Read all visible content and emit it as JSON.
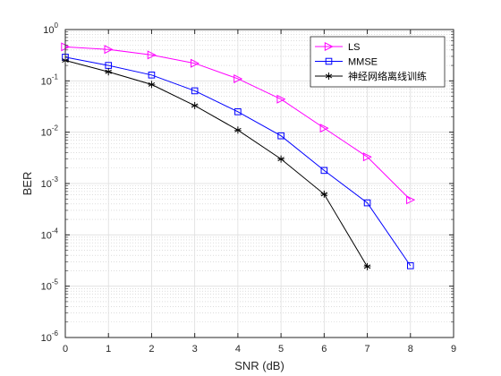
{
  "chart_data": {
    "type": "line",
    "xlabel": "SNR (dB)",
    "ylabel": "BER",
    "xlim": [
      0,
      9
    ],
    "ylim": [
      1e-06,
      1
    ],
    "yscale": "log",
    "grid": true,
    "legend_position": "top-right",
    "x_ticks": [
      "0",
      "1",
      "2",
      "3",
      "4",
      "5",
      "6",
      "7",
      "8",
      "9"
    ],
    "y_ticks": [
      {
        "base": "10",
        "exp": "0"
      },
      {
        "base": "10",
        "exp": "-1"
      },
      {
        "base": "10",
        "exp": "-2"
      },
      {
        "base": "10",
        "exp": "-3"
      },
      {
        "base": "10",
        "exp": "-4"
      },
      {
        "base": "10",
        "exp": "-5"
      },
      {
        "base": "10",
        "exp": "-6"
      }
    ],
    "series": [
      {
        "name": "LS",
        "color": "#ff00ff",
        "marker": "triangle-right",
        "x": [
          0,
          1,
          2,
          3,
          4,
          5,
          6,
          7,
          8
        ],
        "values": [
          0.46,
          0.41,
          0.32,
          0.22,
          0.11,
          0.044,
          0.012,
          0.0033,
          0.00048
        ]
      },
      {
        "name": "MMSE",
        "color": "#0000ff",
        "marker": "square",
        "x": [
          0,
          1,
          2,
          3,
          4,
          5,
          6,
          7,
          8
        ],
        "values": [
          0.29,
          0.2,
          0.13,
          0.064,
          0.025,
          0.0085,
          0.0018,
          0.00042,
          2.5e-05
        ]
      },
      {
        "name": "神经网络离线训练",
        "color": "#000000",
        "marker": "asterisk",
        "x": [
          0,
          1,
          2,
          3,
          4,
          5,
          6,
          7
        ],
        "values": [
          0.25,
          0.15,
          0.085,
          0.033,
          0.011,
          0.003,
          0.00062,
          2.4e-05
        ]
      }
    ]
  }
}
